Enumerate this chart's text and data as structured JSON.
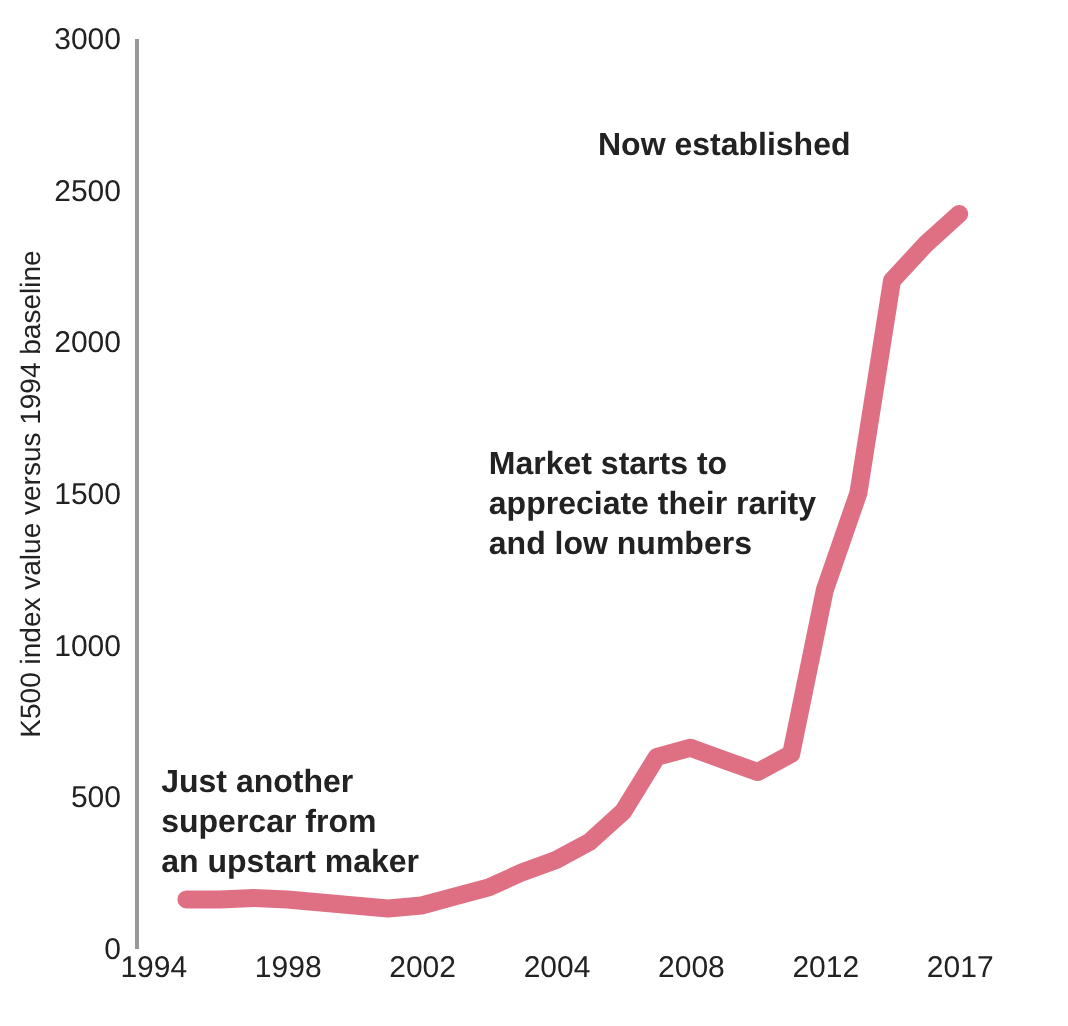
{
  "chart_data": {
    "type": "line",
    "ylabel": "K500 index value versus 1994 baseline",
    "categories": [
      "1994",
      null,
      null,
      null,
      "1998",
      null,
      null,
      null,
      "2002",
      null,
      null,
      null,
      "2004",
      null,
      null,
      null,
      "2008",
      null,
      null,
      null,
      "2012",
      null,
      null,
      null,
      "2017"
    ],
    "series": [
      {
        "color": "#d9576e",
        "values": [
          null,
          160,
          160,
          165,
          160,
          150,
          140,
          130,
          140,
          170,
          200,
          250,
          290,
          350,
          450,
          630,
          660,
          620,
          580,
          640,
          1180,
          1500,
          2200,
          2320,
          2420
        ]
      }
    ],
    "ylim": [
      0,
      3000
    ],
    "yticks": [
      0,
      500,
      1000,
      1500,
      2000,
      2500,
      3000
    ],
    "grid": false,
    "marker": "none",
    "annotations": [
      "Just another\nsupercar from\nan upstart maker",
      "Market starts to\nappreciate their rarity\nand low numbers",
      "Now established"
    ]
  }
}
